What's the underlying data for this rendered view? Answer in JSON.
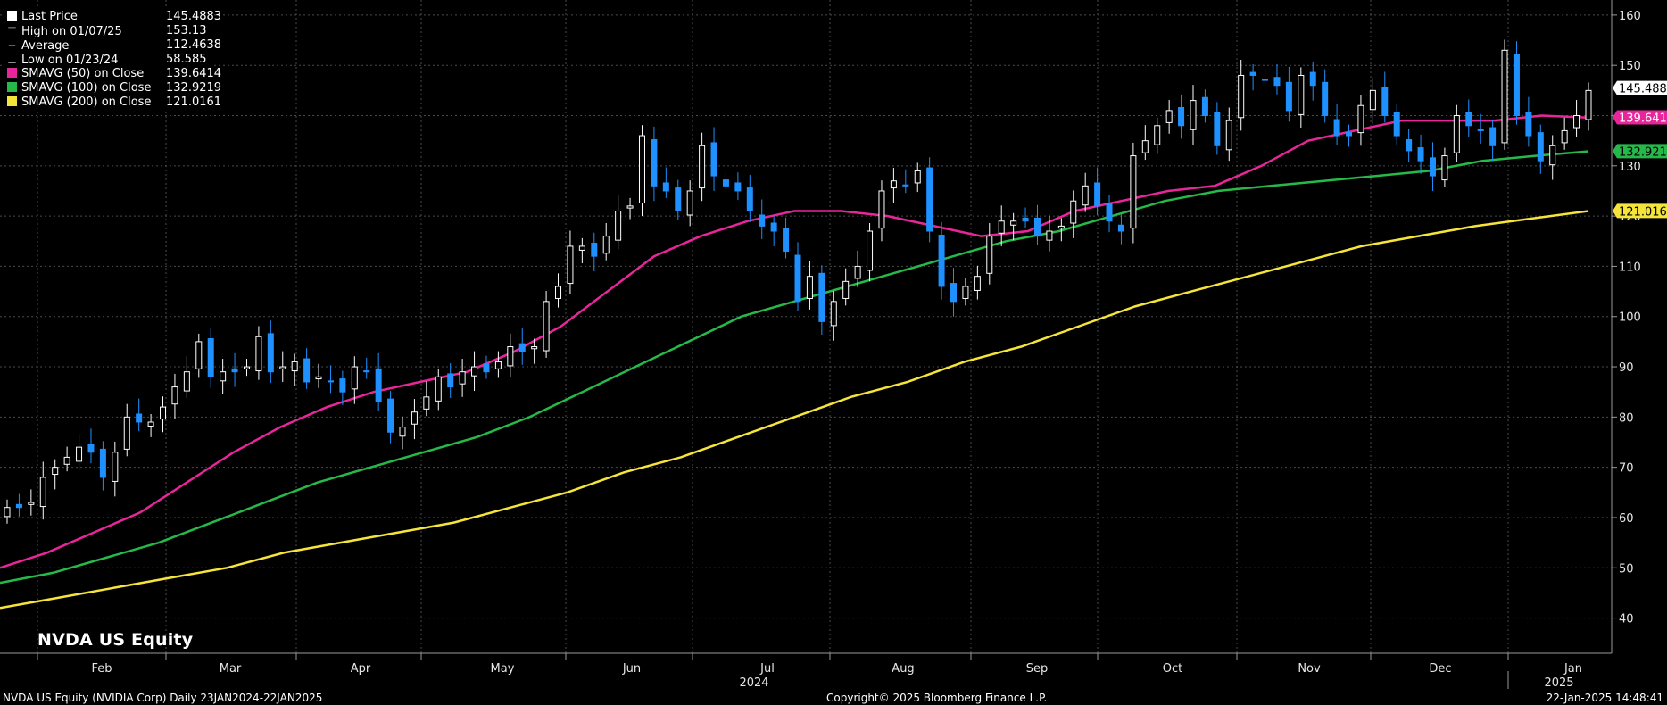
{
  "chart_data": {
    "type": "candlestick",
    "title": "NVDA US Equity",
    "ylim": [
      33,
      163
    ],
    "y_ticks": [
      40,
      50,
      60,
      70,
      80,
      90,
      100,
      110,
      120,
      130,
      140,
      150,
      160
    ],
    "x_months": [
      "Feb",
      "Mar",
      "Apr",
      "May",
      "Jun",
      "Jul",
      "Aug",
      "Sep",
      "Oct",
      "Nov",
      "Dec",
      "Jan"
    ],
    "x_years": [
      "2024",
      "2025"
    ],
    "grid": true,
    "legend": {
      "position": "top-left",
      "items": [
        {
          "symbol": "box",
          "label": "Last Price",
          "value": "145.4883",
          "color": "#ffffff"
        },
        {
          "symbol": "high",
          "label": "High on 01/07/25",
          "value": "153.13",
          "color": "#bbbbbb"
        },
        {
          "symbol": "avg",
          "label": "Average",
          "value": "112.4638",
          "color": "#bbbbbb"
        },
        {
          "symbol": "low",
          "label": "Low on 01/23/24",
          "value": "58.585",
          "color": "#bbbbbb"
        },
        {
          "symbol": "box",
          "label": "SMAVG (50)  on Close",
          "value": "139.6414",
          "color": "#e8259a"
        },
        {
          "symbol": "box",
          "label": "SMAVG (100)  on Close",
          "value": "132.9219",
          "color": "#27b84a"
        },
        {
          "symbol": "box",
          "label": "SMAVG (200)  on Close",
          "value": "121.0161",
          "color": "#f5e43a"
        }
      ]
    },
    "price_labels": [
      {
        "value": 145.4883,
        "text": "145.4883",
        "bg": "#ffffff",
        "fg": "#000000"
      },
      {
        "value": 139.6414,
        "text": "139.6414",
        "bg": "#e8259a",
        "fg": "#ffffff"
      },
      {
        "value": 132.9219,
        "text": "132.9219",
        "bg": "#27b84a",
        "fg": "#000000"
      },
      {
        "value": 121.0161,
        "text": "121.0161",
        "bg": "#f5e43a",
        "fg": "#000000"
      }
    ],
    "colors": {
      "up_candle": "#ffffff",
      "down_candle": "#1e90ff",
      "sma50": "#e8259a",
      "sma100": "#27b84a",
      "sma200": "#f5e43a",
      "grid": "#4a4a4a"
    },
    "candles_approx_close": [
      62,
      62,
      63,
      68,
      70,
      72,
      74,
      73,
      68,
      73,
      80,
      79,
      79,
      82,
      86,
      89,
      95,
      88,
      89,
      89,
      90,
      96,
      89,
      90,
      91,
      87,
      88,
      87,
      85,
      90,
      89,
      83,
      77,
      78,
      81,
      84,
      88,
      86,
      89,
      90,
      89,
      91,
      94,
      93,
      94,
      103,
      106,
      114,
      114,
      112,
      116,
      121,
      122,
      136,
      126,
      125,
      121,
      125,
      134,
      128,
      126,
      125,
      121,
      118,
      117,
      113,
      103,
      108,
      99,
      103,
      107,
      110,
      117,
      125,
      127,
      126,
      129,
      117,
      106,
      103,
      106,
      108,
      116,
      119,
      119,
      119,
      116,
      117,
      118,
      123,
      126,
      122,
      119,
      117,
      132,
      135,
      138,
      141,
      138,
      143,
      140,
      134,
      139,
      148,
      148,
      147,
      146,
      141,
      148,
      146,
      140,
      136,
      136,
      142,
      145,
      140,
      136,
      133,
      131,
      128,
      132,
      140,
      138,
      137,
      134,
      153,
      140,
      136,
      131,
      134,
      137,
      140,
      145
    ],
    "sma50_approx": [
      50,
      53,
      57,
      61,
      67,
      73,
      78,
      82,
      85,
      87,
      89,
      93,
      98,
      105,
      112,
      116,
      119,
      121,
      121,
      120,
      118,
      116,
      117,
      121,
      123,
      125,
      126,
      130,
      135,
      137,
      139,
      139,
      139,
      140,
      139.6
    ],
    "sma100_approx": [
      47,
      49,
      52,
      55,
      59,
      63,
      67,
      70,
      73,
      76,
      80,
      85,
      90,
      95,
      100,
      103,
      106,
      109,
      112,
      115,
      117,
      120,
      123,
      125,
      126,
      127,
      128,
      129,
      131,
      132,
      132.9
    ],
    "sma200_approx": [
      42,
      44,
      46,
      48,
      50,
      53,
      55,
      57,
      59,
      62,
      65,
      69,
      72,
      76,
      80,
      84,
      87,
      91,
      94,
      98,
      102,
      105,
      108,
      111,
      114,
      116,
      118,
      119.5,
      121
    ]
  },
  "footer": {
    "left": "NVDA US Equity (NVIDIA Corp)   Daily 23JAN2024-22JAN2025",
    "center": "Copyright© 2025 Bloomberg Finance L.P.",
    "right": "22-Jan-2025 14:48:41"
  }
}
